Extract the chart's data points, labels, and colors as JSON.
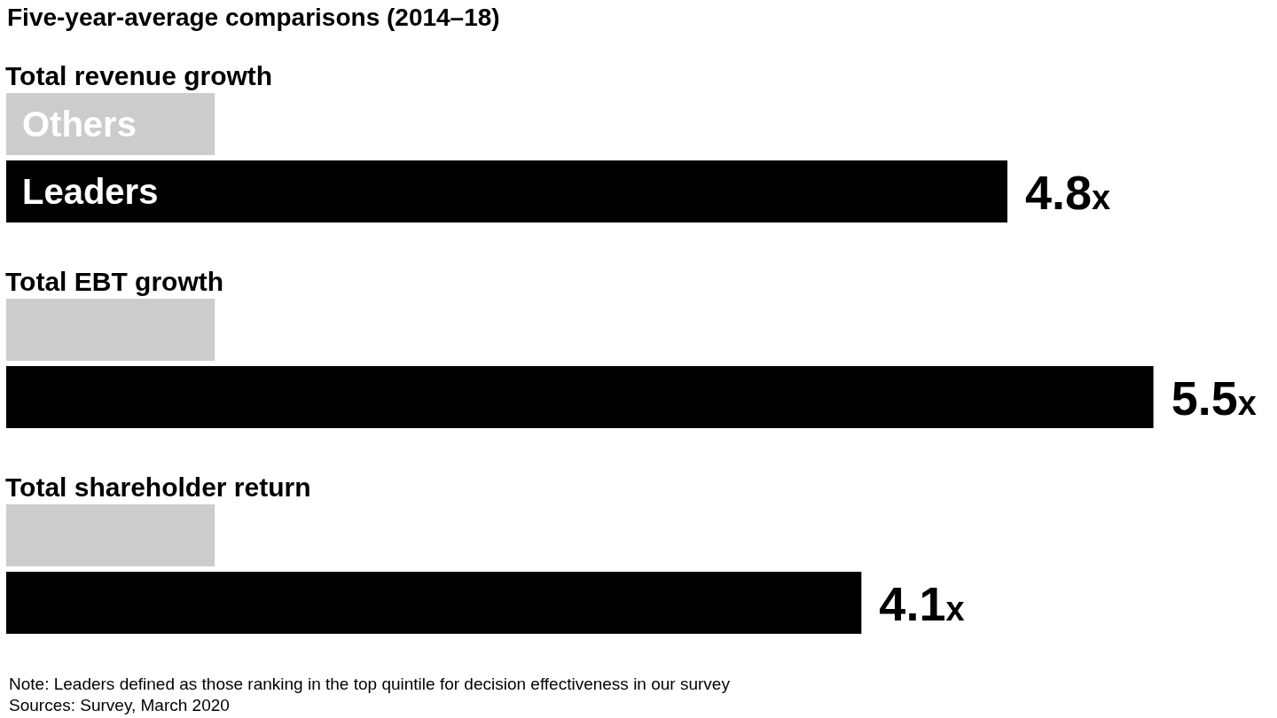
{
  "chart_data": {
    "type": "bar",
    "orientation": "horizontal",
    "title": "Five-year-average comparisons (2014–18)",
    "categories": [
      "Total revenue growth",
      "Total EBT growth",
      "Total shareholder return"
    ],
    "series": [
      {
        "name": "Others",
        "color": "#cccccc",
        "values": [
          1,
          1,
          1
        ],
        "value_labels": [
          null,
          null,
          null
        ]
      },
      {
        "name": "Leaders",
        "color": "#000000",
        "values": [
          4.8,
          5.5,
          4.1
        ],
        "value_labels": [
          "4.8x",
          "5.5x",
          "4.1x"
        ]
      }
    ],
    "annotations": [
      "Note: Leaders defined as those ranking in the top quintile for decision effectiveness in our survey",
      "Sources: Survey, March 2020"
    ]
  }
}
